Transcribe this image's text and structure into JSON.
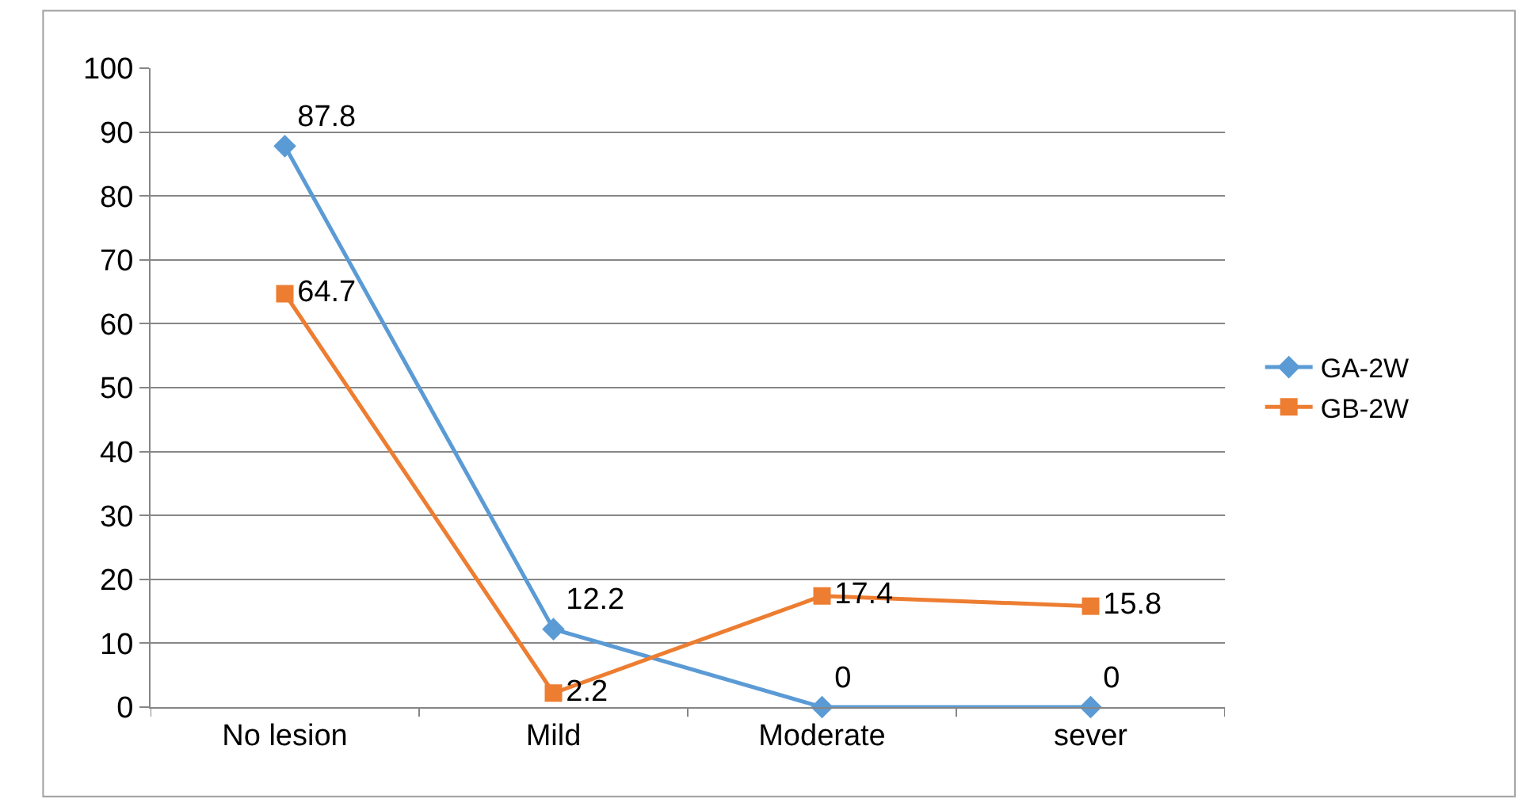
{
  "chart_data": {
    "type": "line",
    "categories": [
      "No lesion",
      "Mild",
      "Moderate",
      "sever"
    ],
    "series": [
      {
        "name": "GA-2W",
        "color": "#5b9bd5",
        "marker": "diamond",
        "values": [
          87.8,
          12.2,
          0,
          0
        ]
      },
      {
        "name": "GB-2W",
        "color": "#ed7d31",
        "marker": "square",
        "values": [
          64.7,
          2.2,
          17.4,
          15.8
        ]
      }
    ],
    "ylim": [
      0,
      100
    ],
    "yticks": [
      0,
      10,
      20,
      30,
      40,
      50,
      60,
      70,
      80,
      90,
      100
    ],
    "grid": "y",
    "legend": "right",
    "data_labels": true,
    "line_style": "solid"
  }
}
